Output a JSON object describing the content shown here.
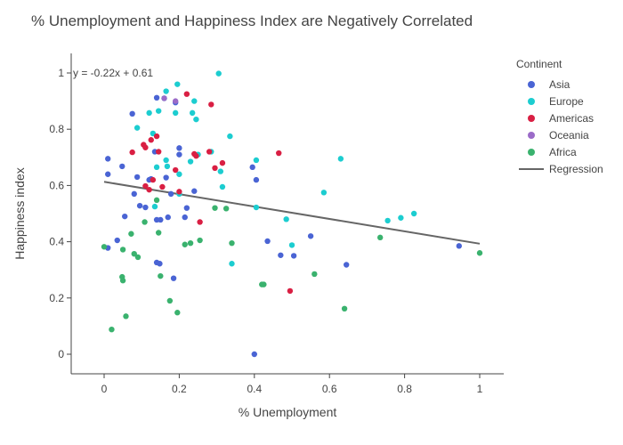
{
  "chart_data": {
    "type": "scatter",
    "title": "% Unemployment and Happiness Index are Negatively Correlated",
    "xlabel": "% Unemployment",
    "ylabel": "Happiness index",
    "xlim": [
      -0.09,
      1.07
    ],
    "ylim": [
      -0.09,
      1.07
    ],
    "x_ticks": [
      0,
      0.2,
      0.4,
      0.6,
      0.8,
      1
    ],
    "x_tick_labels": [
      "0",
      "0.2",
      "0.4",
      "0.6",
      "0.8",
      "1"
    ],
    "y_ticks": [
      0,
      0.2,
      0.4,
      0.6,
      0.8,
      1
    ],
    "y_tick_labels": [
      "0",
      "0.2",
      "0.4",
      "0.6",
      "0.8",
      "1"
    ],
    "legend_title": "Continent",
    "legend_position": "top-right",
    "annotation": "y = -0.22x + 0.61",
    "regression": {
      "name": "Regression",
      "color": "#666666",
      "slope": -0.22,
      "intercept": 0.613,
      "x_range": [
        0,
        1
      ]
    },
    "series": [
      {
        "name": "Asia",
        "color": "#4a64d4",
        "points": [
          [
            0.01,
            0.695
          ],
          [
            0.01,
            0.378
          ],
          [
            0.01,
            0.64
          ],
          [
            0.035,
            0.405
          ],
          [
            0.048,
            0.668
          ],
          [
            0.055,
            0.49
          ],
          [
            0.075,
            0.855
          ],
          [
            0.08,
            0.57
          ],
          [
            0.088,
            0.63
          ],
          [
            0.095,
            0.528
          ],
          [
            0.11,
            0.522
          ],
          [
            0.12,
            0.62
          ],
          [
            0.125,
            0.623
          ],
          [
            0.135,
            0.72
          ],
          [
            0.14,
            0.912
          ],
          [
            0.14,
            0.478
          ],
          [
            0.14,
            0.326
          ],
          [
            0.148,
            0.322
          ],
          [
            0.15,
            0.478
          ],
          [
            0.165,
            0.628
          ],
          [
            0.17,
            0.487
          ],
          [
            0.178,
            0.57
          ],
          [
            0.185,
            0.27
          ],
          [
            0.19,
            0.895
          ],
          [
            0.2,
            0.733
          ],
          [
            0.2,
            0.71
          ],
          [
            0.215,
            0.487
          ],
          [
            0.22,
            0.52
          ],
          [
            0.24,
            0.58
          ],
          [
            0.395,
            0.665
          ],
          [
            0.4,
            0
          ],
          [
            0.405,
            0.62
          ],
          [
            0.435,
            0.402
          ],
          [
            0.47,
            0.352
          ],
          [
            0.505,
            0.35
          ],
          [
            0.55,
            0.42
          ],
          [
            0.645,
            0.318
          ],
          [
            0.945,
            0.385
          ]
        ]
      },
      {
        "name": "Europe",
        "color": "#1ccdd0",
        "points": [
          [
            0.088,
            0.805
          ],
          [
            0.12,
            0.858
          ],
          [
            0.13,
            0.785
          ],
          [
            0.135,
            0.525
          ],
          [
            0.14,
            0.665
          ],
          [
            0.145,
            0.865
          ],
          [
            0.16,
            0.91
          ],
          [
            0.165,
            0.935
          ],
          [
            0.165,
            0.69
          ],
          [
            0.168,
            0.668
          ],
          [
            0.19,
            0.858
          ],
          [
            0.195,
            0.96
          ],
          [
            0.2,
            0.64
          ],
          [
            0.2,
            0.57
          ],
          [
            0.23,
            0.685
          ],
          [
            0.235,
            0.858
          ],
          [
            0.24,
            0.9
          ],
          [
            0.245,
            0.835
          ],
          [
            0.25,
            0.71
          ],
          [
            0.285,
            0.72
          ],
          [
            0.305,
            0.998
          ],
          [
            0.31,
            0.65
          ],
          [
            0.315,
            0.595
          ],
          [
            0.335,
            0.775
          ],
          [
            0.34,
            0.322
          ],
          [
            0.405,
            0.69
          ],
          [
            0.405,
            0.522
          ],
          [
            0.485,
            0.48
          ],
          [
            0.5,
            0.388
          ],
          [
            0.585,
            0.575
          ],
          [
            0.63,
            0.695
          ],
          [
            0.755,
            0.475
          ],
          [
            0.79,
            0.485
          ],
          [
            0.825,
            0.5
          ]
        ]
      },
      {
        "name": "Americas",
        "color": "#d91f43",
        "points": [
          [
            0.075,
            0.718
          ],
          [
            0.105,
            0.745
          ],
          [
            0.11,
            0.735
          ],
          [
            0.11,
            0.598
          ],
          [
            0.12,
            0.585
          ],
          [
            0.125,
            0.762
          ],
          [
            0.13,
            0.62
          ],
          [
            0.14,
            0.775
          ],
          [
            0.145,
            0.72
          ],
          [
            0.155,
            0.595
          ],
          [
            0.19,
            0.655
          ],
          [
            0.2,
            0.578
          ],
          [
            0.22,
            0.925
          ],
          [
            0.24,
            0.712
          ],
          [
            0.245,
            0.705
          ],
          [
            0.255,
            0.47
          ],
          [
            0.28,
            0.72
          ],
          [
            0.285,
            0.888
          ],
          [
            0.295,
            0.662
          ],
          [
            0.315,
            0.68
          ],
          [
            0.465,
            0.715
          ],
          [
            0.495,
            0.225
          ]
        ]
      },
      {
        "name": "Oceania",
        "color": "#9b6bc8",
        "points": [
          [
            0.16,
            0.91
          ],
          [
            0.19,
            0.9
          ]
        ]
      },
      {
        "name": "Africa",
        "color": "#3ab26e",
        "points": [
          [
            0,
            0.382
          ],
          [
            0.02,
            0.088
          ],
          [
            0.048,
            0.275
          ],
          [
            0.05,
            0.262
          ],
          [
            0.05,
            0.372
          ],
          [
            0.058,
            0.135
          ],
          [
            0.072,
            0.428
          ],
          [
            0.08,
            0.357
          ],
          [
            0.09,
            0.345
          ],
          [
            0.108,
            0.47
          ],
          [
            0.14,
            0.548
          ],
          [
            0.145,
            0.432
          ],
          [
            0.15,
            0.278
          ],
          [
            0.175,
            0.19
          ],
          [
            0.195,
            0.148
          ],
          [
            0.215,
            0.39
          ],
          [
            0.23,
            0.395
          ],
          [
            0.255,
            0.405
          ],
          [
            0.295,
            0.52
          ],
          [
            0.325,
            0.518
          ],
          [
            0.34,
            0.395
          ],
          [
            0.42,
            0.248
          ],
          [
            0.425,
            0.248
          ],
          [
            0.56,
            0.285
          ],
          [
            0.64,
            0.162
          ],
          [
            0.735,
            0.415
          ],
          [
            1,
            0.36
          ]
        ]
      }
    ]
  }
}
